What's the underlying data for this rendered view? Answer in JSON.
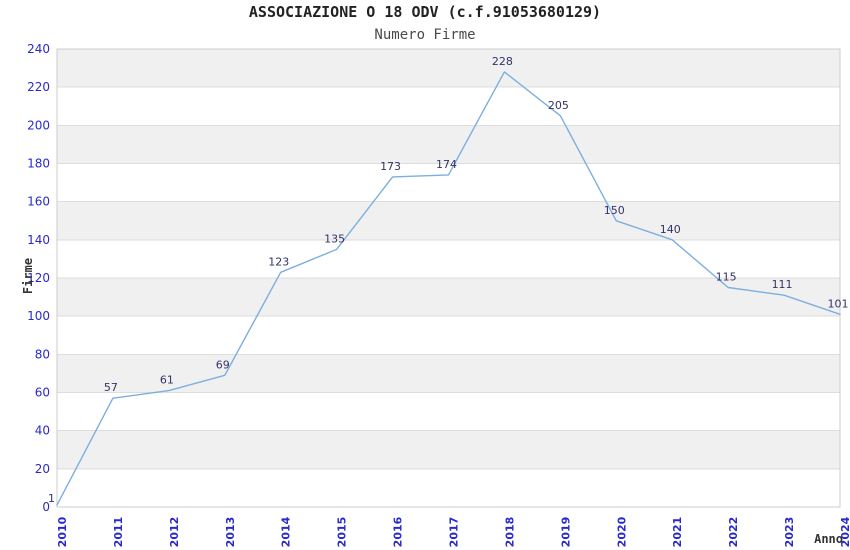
{
  "chart_data": {
    "type": "line",
    "title": "ASSOCIAZIONE O 18 ODV (c.f.91053680129)",
    "subtitle": "Numero Firme",
    "xlabel": "Anno",
    "ylabel": "Firme",
    "categories": [
      "2010",
      "2011",
      "2012",
      "2013",
      "2014",
      "2015",
      "2016",
      "2017",
      "2018",
      "2019",
      "2020",
      "2021",
      "2022",
      "2023",
      "2024"
    ],
    "values": [
      1,
      57,
      61,
      69,
      123,
      135,
      173,
      174,
      228,
      205,
      150,
      140,
      115,
      111,
      101
    ],
    "ylim": [
      0,
      240
    ],
    "ytick_step": 20,
    "grid": "horizontal-bands-alternating",
    "legend": "none",
    "point_labels_visible": true,
    "colors": {
      "line": "#7cafe0",
      "tick_label": "#2a2acc",
      "point_label": "#333366",
      "band_gray": "#f0f0f0",
      "band_white": "#ffffff",
      "gridline": "#dddddd",
      "plot_border": "#cccccc",
      "title": "#222222",
      "subtitle": "#4a4a4a",
      "axis_title": "#333333",
      "background": "#ffffff"
    }
  }
}
